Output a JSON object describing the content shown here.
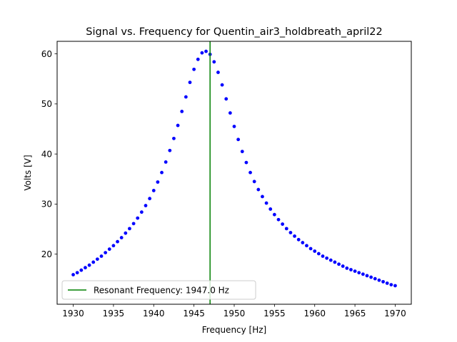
{
  "chart_data": {
    "type": "scatter",
    "title": "Signal vs. Frequency for Quentin_air3_holdbreath_april22",
    "xlabel": "Frequency [Hz]",
    "ylabel": "Volts [V]",
    "xlim": [
      1928.0,
      1972.0
    ],
    "ylim": [
      10.0,
      62.5
    ],
    "x_ticks": [
      1930,
      1935,
      1940,
      1945,
      1950,
      1955,
      1960,
      1965,
      1970
    ],
    "y_ticks": [
      20,
      30,
      40,
      50,
      60
    ],
    "grid": false,
    "legend_position": "lower-left",
    "series": [
      {
        "color": "#0000ff",
        "marker": "dot",
        "x": [
          1930.0,
          1930.5,
          1931.0,
          1931.5,
          1932.0,
          1932.5,
          1933.0,
          1933.5,
          1934.0,
          1934.5,
          1935.0,
          1935.5,
          1936.0,
          1936.5,
          1937.0,
          1937.5,
          1938.0,
          1938.5,
          1939.0,
          1939.5,
          1940.0,
          1940.5,
          1941.0,
          1941.5,
          1942.0,
          1942.5,
          1943.0,
          1943.5,
          1944.0,
          1944.5,
          1945.0,
          1945.5,
          1946.0,
          1946.5,
          1947.0,
          1947.5,
          1948.0,
          1948.5,
          1949.0,
          1949.5,
          1950.0,
          1950.5,
          1951.0,
          1951.5,
          1952.0,
          1952.5,
          1953.0,
          1953.5,
          1954.0,
          1954.5,
          1955.0,
          1955.5,
          1956.0,
          1956.5,
          1957.0,
          1957.5,
          1958.0,
          1958.5,
          1959.0,
          1959.5,
          1960.0,
          1960.5,
          1961.0,
          1961.5,
          1962.0,
          1962.5,
          1963.0,
          1963.5,
          1964.0,
          1964.5,
          1965.0,
          1965.5,
          1966.0,
          1966.5,
          1967.0,
          1967.5,
          1968.0,
          1968.5,
          1969.0,
          1969.5,
          1970.0
        ],
        "y": [
          15.9,
          16.3,
          16.8,
          17.3,
          17.8,
          18.4,
          19.0,
          19.6,
          20.3,
          21.0,
          21.7,
          22.5,
          23.3,
          24.2,
          25.1,
          26.1,
          27.2,
          28.4,
          29.7,
          31.1,
          32.7,
          34.4,
          36.3,
          38.4,
          40.7,
          43.1,
          45.7,
          48.5,
          51.4,
          54.3,
          56.9,
          58.9,
          60.2,
          60.5,
          59.9,
          58.4,
          56.3,
          53.8,
          51.0,
          48.2,
          45.5,
          42.9,
          40.5,
          38.3,
          36.3,
          34.5,
          32.9,
          31.5,
          30.2,
          29.0,
          27.9,
          26.9,
          26.0,
          25.1,
          24.3,
          23.6,
          22.9,
          22.3,
          21.7,
          21.1,
          20.6,
          20.1,
          19.6,
          19.2,
          18.8,
          18.4,
          18.0,
          17.6,
          17.2,
          16.9,
          16.6,
          16.3,
          16.0,
          15.7,
          15.4,
          15.1,
          14.8,
          14.5,
          14.2,
          13.9,
          13.7
        ]
      }
    ],
    "vline": {
      "x": 1947.0,
      "color": "#008000",
      "label": "Resonant Frequency: 1947.0 Hz"
    }
  }
}
